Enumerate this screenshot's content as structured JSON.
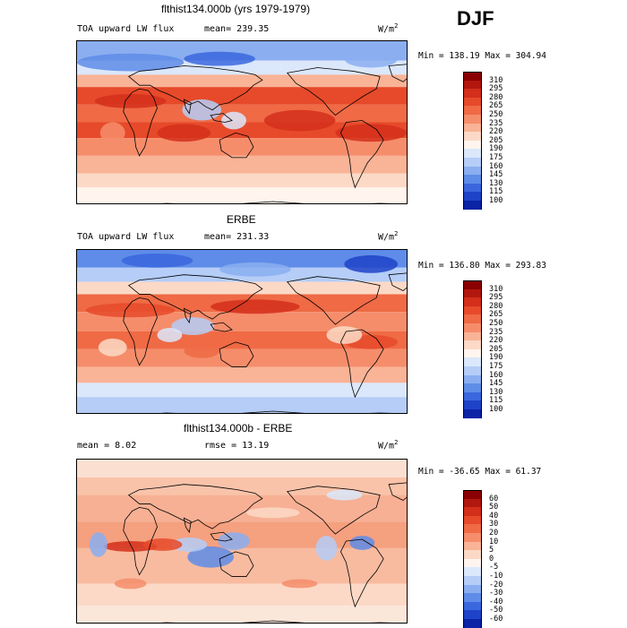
{
  "season": "DJF",
  "panels": [
    {
      "title": "flthist134.000b (yrs 1979-1979)",
      "subtitle": "TOA upward LW flux",
      "mean": "mean= 239.35",
      "units": "W/m",
      "units_sup": "2",
      "minmax": "Min = 138.19 Max = 304.94",
      "colorbar": {
        "labels": [
          "310",
          "295",
          "280",
          "265",
          "250",
          "235",
          "220",
          "205",
          "190",
          "175",
          "160",
          "145",
          "130",
          "115",
          "100"
        ],
        "colors": [
          "#8b0000",
          "#b2170f",
          "#d32f1b",
          "#e64a2a",
          "#ef6a45",
          "#f58d6b",
          "#f9b396",
          "#fcd9c6",
          "#fff5ee",
          "#dbe7fb",
          "#b5cdf7",
          "#8aaef0",
          "#5e8ce8",
          "#3a67de",
          "#1f43c8",
          "#0b23a5"
        ]
      },
      "style": "flux1"
    },
    {
      "title": "ERBE",
      "subtitle": "TOA upward LW flux",
      "mean": "mean= 231.33",
      "units": "W/m",
      "units_sup": "2",
      "minmax": "Min = 136.80 Max = 293.83",
      "colorbar": {
        "labels": [
          "310",
          "295",
          "280",
          "265",
          "250",
          "235",
          "220",
          "205",
          "190",
          "175",
          "160",
          "145",
          "130",
          "115",
          "100"
        ],
        "colors": [
          "#8b0000",
          "#b2170f",
          "#d32f1b",
          "#e64a2a",
          "#ef6a45",
          "#f58d6b",
          "#f9b396",
          "#fcd9c6",
          "#fff5ee",
          "#dbe7fb",
          "#b5cdf7",
          "#8aaef0",
          "#5e8ce8",
          "#3a67de",
          "#1f43c8",
          "#0b23a5"
        ]
      },
      "style": "flux2"
    },
    {
      "title": "flthist134.000b - ERBE",
      "subtitle": "mean =   8.02",
      "mean": "rmse =  13.19",
      "units": "W/m",
      "units_sup": "2",
      "minmax": "Min = -36.65 Max =  61.37",
      "colorbar": {
        "labels": [
          "60",
          "50",
          "40",
          "30",
          "20",
          "10",
          "5",
          "0",
          "-5",
          "-10",
          "-20",
          "-30",
          "-40",
          "-50",
          "-60"
        ],
        "colors": [
          "#8b0000",
          "#b2170f",
          "#d32f1b",
          "#e64a2a",
          "#ef6a45",
          "#f58d6b",
          "#f9b396",
          "#fcd9c6",
          "#fff5ee",
          "#dbe7fb",
          "#b5cdf7",
          "#8aaef0",
          "#5e8ce8",
          "#3a67de",
          "#1f43c8",
          "#0b23a5"
        ]
      },
      "style": "diff"
    }
  ]
}
